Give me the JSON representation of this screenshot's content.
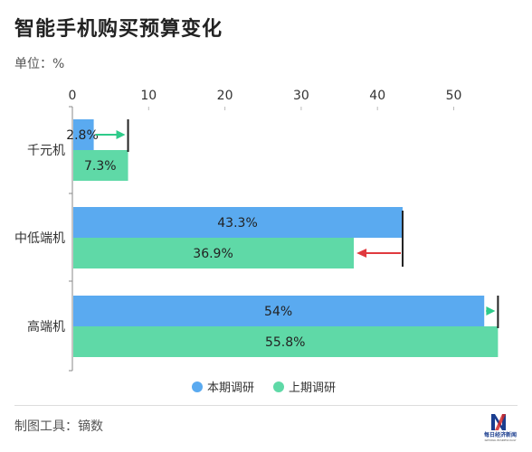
{
  "title": "智能手机购买预算变化",
  "unit_label": "单位：%",
  "footer": "制图工具：镝数",
  "logo": {
    "name": "每日经济新闻",
    "subtitle": "NATIONAL BUSINESS DAILY"
  },
  "colors": {
    "current": "#5aaaf0",
    "previous": "#5fd9a7",
    "increase": "#2ecb8a",
    "decrease": "#e0393e",
    "marker": "#222222"
  },
  "chart_data": {
    "type": "bar",
    "orientation": "horizontal",
    "title": "智能手机购买预算变化",
    "unit": "单位：%",
    "categories": [
      "千元机",
      "中低端机",
      "高端机"
    ],
    "series": [
      {
        "name": "本期调研",
        "values": [
          2.8,
          43.3,
          54
        ],
        "labels": [
          "2.8%",
          "43.3%",
          "54%"
        ]
      },
      {
        "name": "上期调研",
        "values": [
          7.3,
          36.9,
          55.8
        ],
        "labels": [
          "7.3%",
          "36.9%",
          "55.8%"
        ]
      }
    ],
    "x_ticks": [
      0,
      10,
      20,
      30,
      40,
      50
    ],
    "xlim": [
      0,
      58
    ],
    "legend": "bottom",
    "grid": false,
    "annotations": [
      {
        "category": "千元机",
        "from": 2.8,
        "to": 7.3,
        "direction": "increase"
      },
      {
        "category": "中低端机",
        "from": 43.3,
        "to": 36.9,
        "direction": "decrease"
      },
      {
        "category": "高端机",
        "from": 54,
        "to": 55.8,
        "direction": "increase"
      }
    ]
  }
}
